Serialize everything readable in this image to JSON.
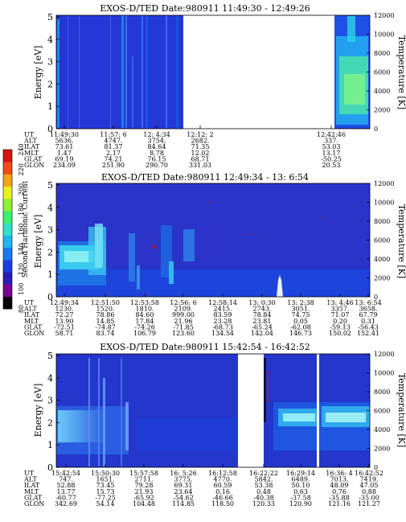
{
  "colorbar": {
    "label": "Second Harmonic Current",
    "ticks": [
      "80",
      "100",
      "120",
      "140",
      "160",
      "180",
      "200",
      "220",
      "240"
    ],
    "colors": [
      "#000000",
      "#7a0090",
      "#2a1fb4",
      "#1d3ede",
      "#1a78ec",
      "#22b6f0",
      "#33e0c9",
      "#3df06e",
      "#8df232",
      "#e8f21e",
      "#f3a41a",
      "#ef4b16",
      "#d61412"
    ]
  },
  "panels": [
    {
      "title": "EXOS-D/TED   Date:980911  11:49:30 - 12:49:26",
      "ylabel": "Energy [eV]",
      "ylabel_right": "Temperature [K]",
      "yticks": [
        "0",
        "1",
        "2",
        "3",
        "4",
        "5"
      ],
      "yticks_right": [
        "0",
        "2000",
        "4000",
        "6000",
        "8000",
        "10000",
        "12000"
      ],
      "row_labels": [
        "UT",
        "ALT",
        "ILAT",
        "MLT",
        "GLAT",
        "GLON"
      ],
      "columns": [
        {
          "values": [
            "11:49:30",
            "5636.",
            "73.61",
            "1.47",
            "69.19",
            "234.09"
          ]
        },
        {
          "values": [
            "11:57: 6",
            "4747.",
            "81.37",
            "2.17",
            "74.21",
            "251.90"
          ]
        },
        {
          "values": [
            "12: 4:34",
            "3754.",
            "84.64",
            "8.78",
            "76.15",
            "290.70"
          ]
        },
        {
          "values": [
            "12:12: 2",
            "2682.",
            "71.35",
            "12.02",
            "68.71",
            "331.03"
          ]
        },
        {
          "values": [
            "12:42:46",
            "337.",
            "53.03",
            "13.17",
            "-50.25",
            "20.53"
          ]
        }
      ],
      "chart_data": {
        "type": "heatmap",
        "x_range": [
          "11:49:30",
          "12:49:26"
        ],
        "ylim": [
          0,
          5
        ],
        "ylim_right": [
          0,
          12000
        ],
        "data_gaps": [
          [
            "12:17:00",
            "12:43:30"
          ]
        ],
        "bands": []
      }
    },
    {
      "title": "EXOS-D/TED   Date:980911  12:49:34 - 13: 6:54",
      "ylabel": "Energy [eV]",
      "ylabel_right": "Temperature [K]",
      "yticks": [
        "0",
        "1",
        "2",
        "3",
        "4",
        "5"
      ],
      "yticks_right": [
        "0",
        "2000",
        "4000",
        "6000",
        "8000",
        "10000",
        "12000"
      ],
      "row_labels": [
        "UT",
        "ALT",
        "ILAT",
        "MLT",
        "GLAT",
        "GLON"
      ],
      "columns": [
        {
          "values": [
            "12:49:34",
            "1230.",
            "72.27",
            "13.90",
            "-72.51",
            "58.71"
          ]
        },
        {
          "values": [
            "12:51:50",
            "1520.",
            "78.86",
            "14.85",
            "-74.87",
            "83.74"
          ]
        },
        {
          "values": [
            "12:53:58",
            "1810.",
            "84.60",
            "17.84",
            "-74.26",
            "106.79"
          ]
        },
        {
          "values": [
            "12:56: 6",
            "2109.",
            "999.00",
            "21.96",
            "-71.85",
            "123.60"
          ]
        },
        {
          "values": [
            "12:58:14",
            "2415.",
            "83.59",
            "23.28",
            "-68.73",
            "134.54"
          ]
        },
        {
          "values": [
            "13: 0:30",
            "2743.",
            "78.84",
            "23.81",
            "-65.24",
            "142.04"
          ]
        },
        {
          "values": [
            "13: 2:38",
            "3051.",
            "74.75",
            "0.05",
            "-62.08",
            "146.73"
          ]
        },
        {
          "values": [
            "13: 4:46",
            "3357.",
            "71.07",
            "0.20",
            "-59.13",
            "150.02"
          ]
        },
        {
          "values": [
            "13: 6:54",
            "3658.",
            "67.79",
            "0.31",
            "-56.43",
            "152.41"
          ]
        }
      ],
      "chart_data": {
        "type": "heatmap",
        "x_range": [
          "12:49:34",
          "13: 6:54"
        ],
        "ylim": [
          0,
          5
        ],
        "ylim_right": [
          0,
          12000
        ],
        "data_gaps": [],
        "bands": []
      }
    },
    {
      "title": "EXOS-D/TED   Date:980911  15:42:54 - 16:42:52",
      "ylabel": "Energy [eV]",
      "ylabel_right": "Temperature [K]",
      "yticks": [
        "0",
        "1",
        "2",
        "3",
        "4",
        "5"
      ],
      "yticks_right": [
        "0",
        "2000",
        "4000",
        "6000",
        "8000",
        "10000",
        "12000"
      ],
      "row_labels": [
        "UT",
        "ALT",
        "ILAT",
        "MLT",
        "GLAT",
        "GLON"
      ],
      "columns": [
        {
          "values": [
            "15:42:54",
            "747.",
            "52.88",
            "13.77",
            "-60.77",
            "342.69"
          ]
        },
        {
          "values": [
            "15:50:30",
            "1651.",
            "73.45",
            "15.73",
            "-77.25",
            "54.14"
          ]
        },
        {
          "values": [
            "15:57:58",
            "2711.",
            "79.28",
            "21.93",
            "-65.92",
            "104.48"
          ]
        },
        {
          "values": [
            "16: 5:26",
            "3775.",
            "69.31",
            "23.64",
            "-54.62",
            "114.85"
          ]
        },
        {
          "values": [
            "16:12:58",
            "4770.",
            "60.59",
            "0.16",
            "-46.66",
            "118.50"
          ]
        },
        {
          "values": [
            "16:22:22",
            "5842.",
            "53.38",
            "0.48",
            "-40.38",
            "120.33"
          ]
        },
        {
          "values": [
            "16:29:14",
            "6489.",
            "50.10",
            "0.63",
            "-37.58",
            "120.90"
          ]
        },
        {
          "values": [
            "16:36: 4",
            "7013.",
            "48.09",
            "0.76",
            "-35.88",
            "121.16"
          ]
        },
        {
          "values": [
            "16:42:52",
            "7419.",
            "47.05",
            "0.88",
            "-35.00",
            "121.27"
          ]
        }
      ],
      "chart_data": {
        "type": "heatmap",
        "x_range": [
          "15:42:54",
          "16:42:52"
        ],
        "ylim": [
          0,
          5
        ],
        "ylim_right": [
          0,
          12000
        ],
        "data_gaps": [
          [
            "16:17:30",
            "16:21:30"
          ],
          [
            "16:33:00",
            "16:33:30"
          ]
        ],
        "bands": []
      }
    }
  ]
}
